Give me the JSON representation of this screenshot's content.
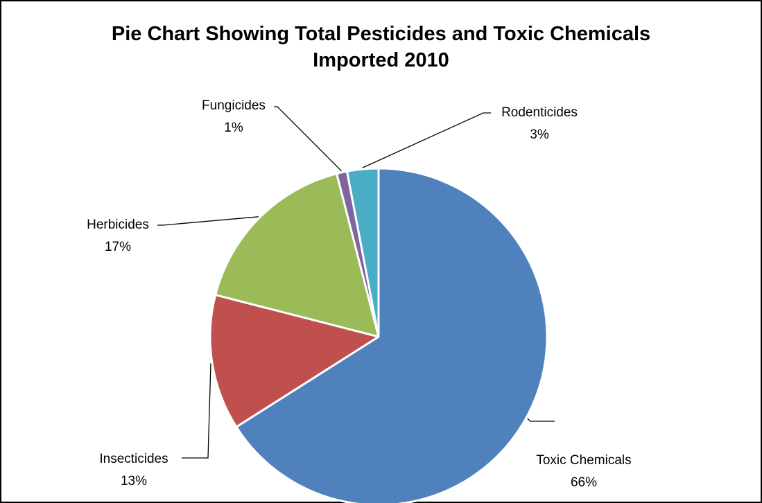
{
  "chart_data": {
    "type": "pie",
    "title_line1": "Pie Chart Showing Total Pesticides and Toxic Chemicals",
    "title_line2": "Imported 2010",
    "slices": [
      {
        "name": "Toxic Chemicals",
        "label": "66%",
        "value": 66,
        "color": "#4F81BD"
      },
      {
        "name": "Insecticides",
        "label": "13%",
        "value": 13,
        "color": "#C0504D"
      },
      {
        "name": "Herbicides",
        "label": "17%",
        "value": 17,
        "color": "#9BBB59"
      },
      {
        "name": "Fungicides",
        "label": "1%",
        "value": 1,
        "color": "#8064A2"
      },
      {
        "name": "Rodenticides",
        "label": "3%",
        "value": 3,
        "color": "#4BACC6"
      }
    ],
    "legend": "none"
  }
}
